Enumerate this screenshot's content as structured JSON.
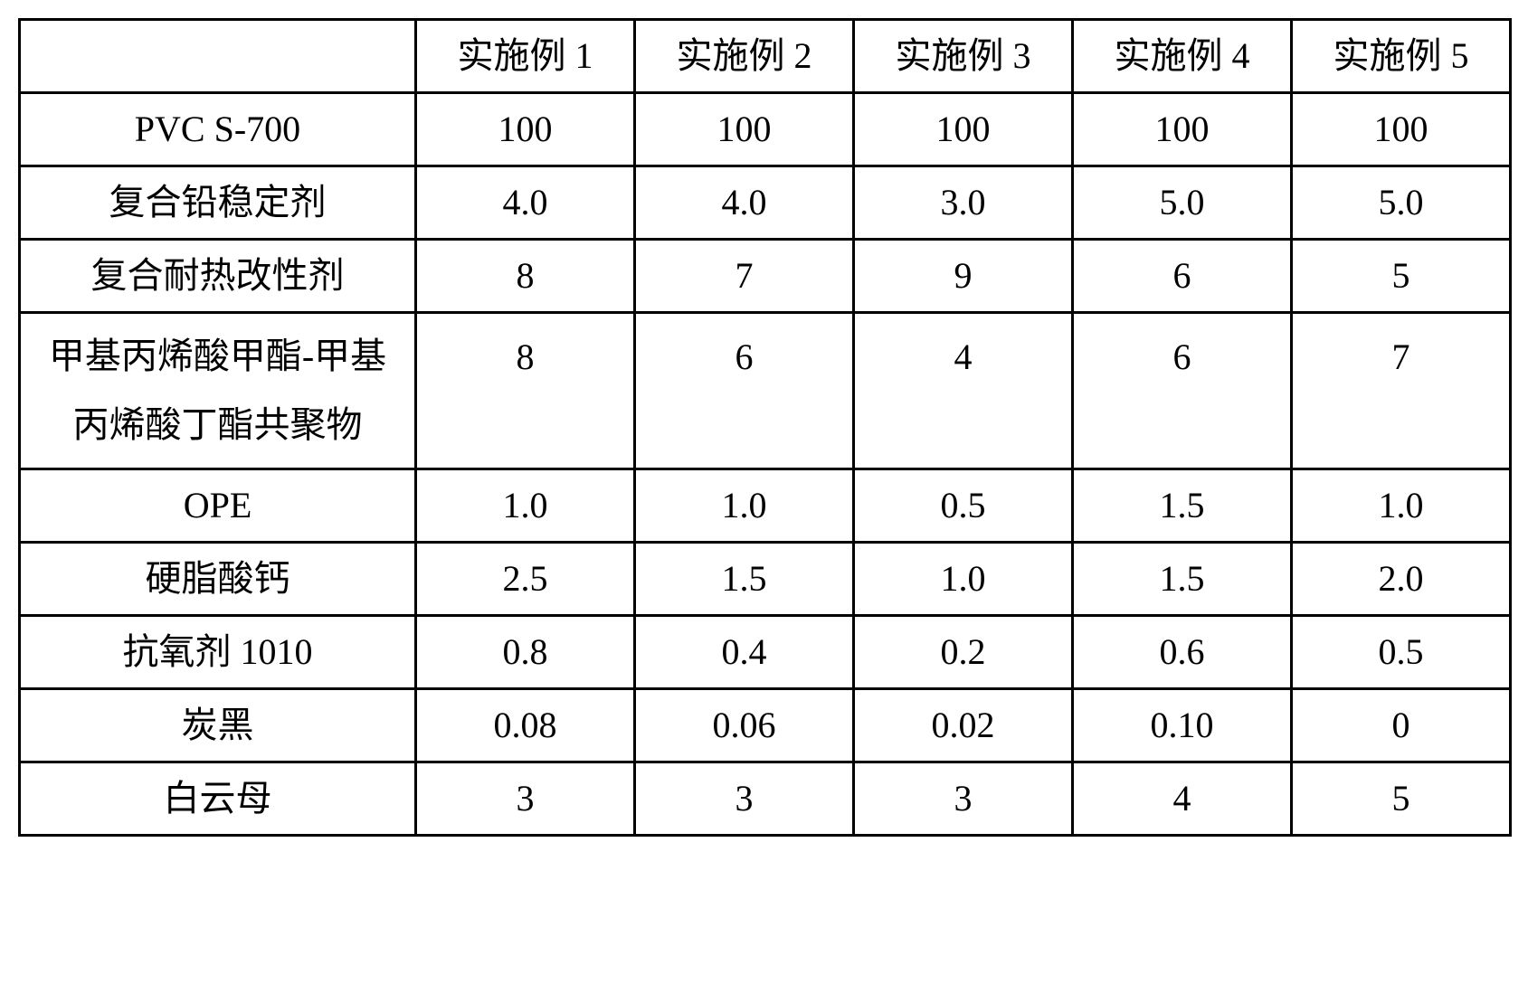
{
  "table": {
    "border_color": "#000000",
    "background_color": "#ffffff",
    "text_color": "#000000",
    "font_family": "SimSun",
    "cell_fontsize": 40,
    "border_width": 3,
    "columns": [
      "",
      "实施例 1",
      "实施例 2",
      "实施例 3",
      "实施例 4",
      "实施例 5"
    ],
    "rows": [
      {
        "label": "PVC S-700",
        "values": [
          "100",
          "100",
          "100",
          "100",
          "100"
        ]
      },
      {
        "label": "复合铅稳定剂",
        "values": [
          "4.0",
          "4.0",
          "3.0",
          "5.0",
          "5.0"
        ]
      },
      {
        "label": "复合耐热改性剂",
        "values": [
          "8",
          "7",
          "9",
          "6",
          "5"
        ]
      },
      {
        "label": "甲基丙烯酸甲酯-甲基\n丙烯酸丁酯共聚物",
        "values": [
          "8",
          "6",
          "4",
          "6",
          "7"
        ],
        "tall": true
      },
      {
        "label": "OPE",
        "values": [
          "1.0",
          "1.0",
          "0.5",
          "1.5",
          "1.0"
        ]
      },
      {
        "label": "硬脂酸钙",
        "values": [
          "2.5",
          "1.5",
          "1.0",
          "1.5",
          "2.0"
        ]
      },
      {
        "label": "抗氧剂 1010",
        "values": [
          "0.8",
          "0.4",
          "0.2",
          "0.6",
          "0.5"
        ]
      },
      {
        "label": "炭黑",
        "values": [
          "0.08",
          "0.06",
          "0.02",
          "0.10",
          "0"
        ]
      },
      {
        "label": "白云母",
        "values": [
          "3",
          "3",
          "3",
          "4",
          "5"
        ]
      }
    ]
  }
}
